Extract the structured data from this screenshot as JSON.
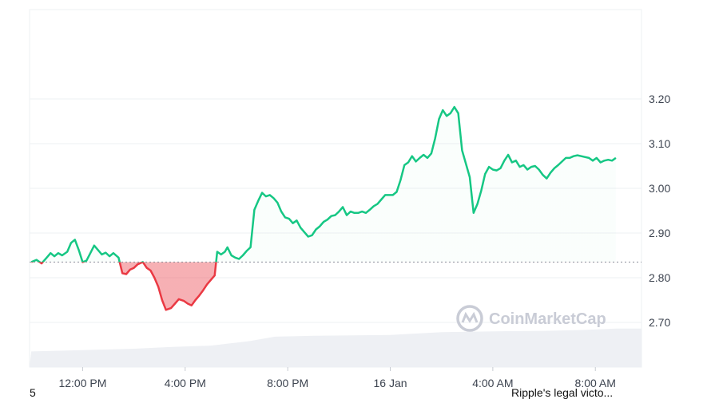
{
  "chart_data": {
    "type": "area",
    "baseline": 2.835,
    "y_ticks": [
      "3.20",
      "3.10",
      "3.00",
      "2.90",
      "2.80",
      "2.70"
    ],
    "ylim": [
      2.6,
      3.4
    ],
    "x_ticks": [
      "12:00 PM",
      "4:00 PM",
      "8:00 PM",
      "16 Jan",
      "4:00 AM",
      "8:00 AM"
    ],
    "x_tick_hours": [
      2,
      6,
      10,
      14,
      18,
      22
    ],
    "xlim_hours": [
      -0.07,
      23.8
    ],
    "grid": true,
    "colors": {
      "up_line": "#16c784",
      "down_line": "#ea3943",
      "up_fill": "#16c784",
      "down_fill": "#ea3943",
      "volume": "#eef0f4",
      "baseline": "#8a8f99"
    },
    "series": [
      {
        "values": [
          [
            0.0,
            2.835
          ],
          [
            0.2,
            2.84
          ],
          [
            0.4,
            2.832
          ],
          [
            0.6,
            2.845
          ],
          [
            0.75,
            2.855
          ],
          [
            0.9,
            2.848
          ],
          [
            1.05,
            2.855
          ],
          [
            1.2,
            2.85
          ],
          [
            1.4,
            2.858
          ],
          [
            1.55,
            2.878
          ],
          [
            1.7,
            2.885
          ],
          [
            1.85,
            2.862
          ],
          [
            2.0,
            2.835
          ],
          [
            2.15,
            2.838
          ],
          [
            2.3,
            2.855
          ],
          [
            2.45,
            2.872
          ],
          [
            2.6,
            2.862
          ],
          [
            2.75,
            2.852
          ],
          [
            2.9,
            2.856
          ],
          [
            3.05,
            2.848
          ],
          [
            3.2,
            2.855
          ],
          [
            3.4,
            2.845
          ],
          [
            3.55,
            2.81
          ],
          [
            3.7,
            2.808
          ],
          [
            3.85,
            2.818
          ],
          [
            4.0,
            2.822
          ],
          [
            4.15,
            2.83
          ],
          [
            4.35,
            2.835
          ],
          [
            4.5,
            2.822
          ],
          [
            4.65,
            2.816
          ],
          [
            4.8,
            2.8
          ],
          [
            4.95,
            2.78
          ],
          [
            5.1,
            2.75
          ],
          [
            5.25,
            2.728
          ],
          [
            5.45,
            2.732
          ],
          [
            5.6,
            2.742
          ],
          [
            5.75,
            2.752
          ],
          [
            5.95,
            2.748
          ],
          [
            6.1,
            2.742
          ],
          [
            6.25,
            2.738
          ],
          [
            6.4,
            2.75
          ],
          [
            6.55,
            2.76
          ],
          [
            6.7,
            2.772
          ],
          [
            6.85,
            2.785
          ],
          [
            7.0,
            2.795
          ],
          [
            7.15,
            2.805
          ],
          [
            7.25,
            2.858
          ],
          [
            7.4,
            2.852
          ],
          [
            7.55,
            2.858
          ],
          [
            7.65,
            2.868
          ],
          [
            7.8,
            2.85
          ],
          [
            7.95,
            2.845
          ],
          [
            8.1,
            2.842
          ],
          [
            8.25,
            2.85
          ],
          [
            8.4,
            2.86
          ],
          [
            8.55,
            2.868
          ],
          [
            8.7,
            2.952
          ],
          [
            8.85,
            2.972
          ],
          [
            9.0,
            2.99
          ],
          [
            9.15,
            2.982
          ],
          [
            9.3,
            2.985
          ],
          [
            9.45,
            2.978
          ],
          [
            9.6,
            2.968
          ],
          [
            9.75,
            2.948
          ],
          [
            9.9,
            2.935
          ],
          [
            10.05,
            2.932
          ],
          [
            10.2,
            2.922
          ],
          [
            10.35,
            2.928
          ],
          [
            10.5,
            2.912
          ],
          [
            10.65,
            2.902
          ],
          [
            10.8,
            2.892
          ],
          [
            10.95,
            2.895
          ],
          [
            11.1,
            2.908
          ],
          [
            11.25,
            2.915
          ],
          [
            11.4,
            2.925
          ],
          [
            11.55,
            2.93
          ],
          [
            11.7,
            2.938
          ],
          [
            11.85,
            2.94
          ],
          [
            12.0,
            2.948
          ],
          [
            12.15,
            2.958
          ],
          [
            12.3,
            2.94
          ],
          [
            12.45,
            2.948
          ],
          [
            12.6,
            2.945
          ],
          [
            12.75,
            2.945
          ],
          [
            12.9,
            2.948
          ],
          [
            13.05,
            2.945
          ],
          [
            13.2,
            2.952
          ],
          [
            13.35,
            2.96
          ],
          [
            13.5,
            2.965
          ],
          [
            13.65,
            2.975
          ],
          [
            13.8,
            2.985
          ],
          [
            13.95,
            2.985
          ],
          [
            14.1,
            2.985
          ],
          [
            14.25,
            2.992
          ],
          [
            14.4,
            3.018
          ],
          [
            14.55,
            3.052
          ],
          [
            14.7,
            3.058
          ],
          [
            14.85,
            3.072
          ],
          [
            15.0,
            3.06
          ],
          [
            15.15,
            3.068
          ],
          [
            15.3,
            3.075
          ],
          [
            15.45,
            3.068
          ],
          [
            15.6,
            3.078
          ],
          [
            15.75,
            3.112
          ],
          [
            15.9,
            3.155
          ],
          [
            16.05,
            3.175
          ],
          [
            16.2,
            3.162
          ],
          [
            16.35,
            3.168
          ],
          [
            16.5,
            3.182
          ],
          [
            16.65,
            3.168
          ],
          [
            16.8,
            3.085
          ],
          [
            16.95,
            3.055
          ],
          [
            17.1,
            3.025
          ],
          [
            17.25,
            2.945
          ],
          [
            17.4,
            2.965
          ],
          [
            17.55,
            2.995
          ],
          [
            17.7,
            3.032
          ],
          [
            17.85,
            3.048
          ],
          [
            18.0,
            3.042
          ],
          [
            18.15,
            3.04
          ],
          [
            18.3,
            3.045
          ],
          [
            18.45,
            3.062
          ],
          [
            18.6,
            3.075
          ],
          [
            18.75,
            3.058
          ],
          [
            18.9,
            3.062
          ],
          [
            19.05,
            3.048
          ],
          [
            19.2,
            3.052
          ],
          [
            19.35,
            3.042
          ],
          [
            19.5,
            3.048
          ],
          [
            19.65,
            3.05
          ],
          [
            19.8,
            3.042
          ],
          [
            19.95,
            3.03
          ],
          [
            20.1,
            3.022
          ],
          [
            20.25,
            3.035
          ],
          [
            20.4,
            3.045
          ],
          [
            20.55,
            3.052
          ],
          [
            20.7,
            3.06
          ],
          [
            20.85,
            3.068
          ],
          [
            21.0,
            3.068
          ],
          [
            21.15,
            3.072
          ],
          [
            21.3,
            3.074
          ],
          [
            21.45,
            3.072
          ],
          [
            21.6,
            3.07
          ],
          [
            21.75,
            3.068
          ],
          [
            21.9,
            3.062
          ],
          [
            22.05,
            3.068
          ],
          [
            22.2,
            3.058
          ],
          [
            22.35,
            3.062
          ],
          [
            22.5,
            3.064
          ],
          [
            22.65,
            3.062
          ],
          [
            22.8,
            3.068
          ]
        ]
      }
    ],
    "volume_series": [
      [
        0,
        2.635
      ],
      [
        2,
        2.638
      ],
      [
        4,
        2.641
      ],
      [
        5.5,
        2.645
      ],
      [
        7,
        2.648
      ],
      [
        8.5,
        2.658
      ],
      [
        9.5,
        2.668
      ],
      [
        11,
        2.67
      ],
      [
        14,
        2.672
      ],
      [
        15,
        2.675
      ],
      [
        16,
        2.678
      ],
      [
        18,
        2.68
      ],
      [
        20,
        2.681
      ],
      [
        21.5,
        2.683
      ],
      [
        22.8,
        2.686
      ]
    ]
  },
  "watermark": {
    "icon": "coinmarketcap-logo-icon",
    "text": "CoinMarketCap"
  },
  "footer": {
    "left_text": "5",
    "right_text": "Ripple's legal victo..."
  }
}
